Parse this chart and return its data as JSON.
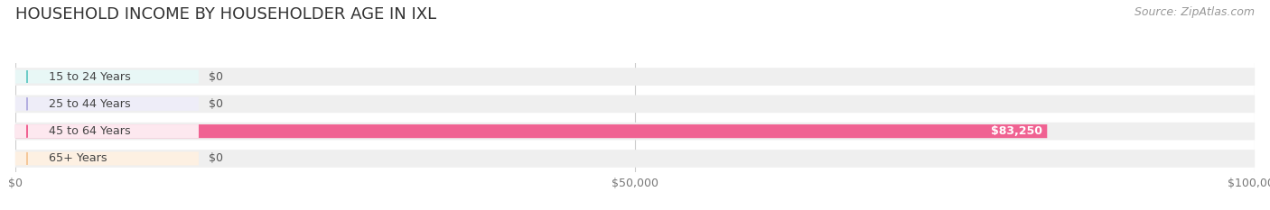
{
  "title": "HOUSEHOLD INCOME BY HOUSEHOLDER AGE IN IXL",
  "source": "Source: ZipAtlas.com",
  "categories": [
    "15 to 24 Years",
    "25 to 44 Years",
    "45 to 64 Years",
    "65+ Years"
  ],
  "values": [
    0,
    0,
    83250,
    0
  ],
  "bar_colors": [
    "#6dccc8",
    "#b3aee0",
    "#f06292",
    "#f5c89a"
  ],
  "label_bg_colors": [
    "#e8f7f6",
    "#eeedf8",
    "#fde8ef",
    "#fdf0e2"
  ],
  "row_bg_color": "#efefef",
  "xlim": [
    0,
    100000
  ],
  "xticks": [
    0,
    50000,
    100000
  ],
  "xtick_labels": [
    "$0",
    "$50,000",
    "$100,000"
  ],
  "title_fontsize": 13,
  "source_fontsize": 9,
  "value_label_color_zero": "#555555",
  "value_label_color_nonzero": "#ffffff",
  "background_color": "#ffffff"
}
